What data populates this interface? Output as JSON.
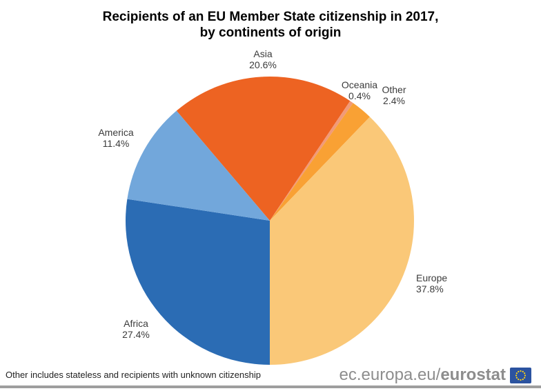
{
  "title": {
    "line1": "Recipients of an EU Member State citizenship in 2017,",
    "line2": "by continents of origin"
  },
  "chart_data": {
    "type": "pie",
    "title": "Recipients of an EU Member State citizenship in 2017, by continents of origin",
    "slices": [
      {
        "label": "Asia",
        "value_pct": 20.6,
        "display": "20.6%",
        "color": "#ED6322"
      },
      {
        "label": "Oceania",
        "value_pct": 0.4,
        "display": "0.4%",
        "color": "#F19A78"
      },
      {
        "label": "Other",
        "value_pct": 2.4,
        "display": "2.4%",
        "color": "#F9A134"
      },
      {
        "label": "Europe",
        "value_pct": 37.8,
        "display": "37.8%",
        "color": "#FAC878"
      },
      {
        "label": "Africa",
        "value_pct": 27.4,
        "display": "27.4%",
        "color": "#2B6CB4"
      },
      {
        "label": "America",
        "value_pct": 11.4,
        "display": "11.4%",
        "color": "#72A7DB"
      }
    ],
    "layout": {
      "start_angle_deg": -40.32,
      "clockwise": true,
      "center": [
        391,
        320
      ],
      "radius": 209,
      "legend": "none",
      "labels": "outside"
    }
  },
  "footnote": "Other includes stateless and recipients with unknown citizenship",
  "logo": {
    "url_regular": "ec.europa.eu/",
    "url_bold": "eurostat",
    "flag_color": "#2B53A0",
    "star_color": "#FFD314"
  }
}
